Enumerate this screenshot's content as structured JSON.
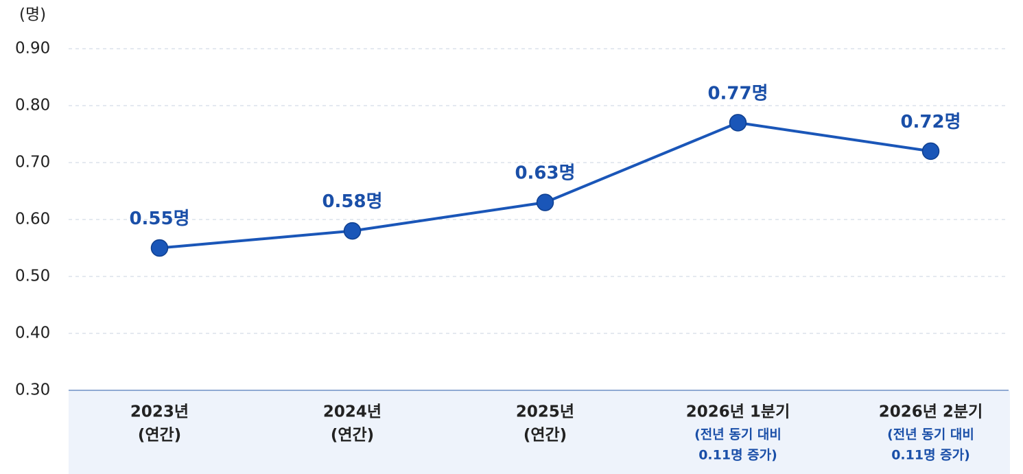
{
  "chart_data": {
    "type": "line",
    "y_axis_label": "(명)",
    "categories": [
      "2023년",
      "2024년",
      "2025년",
      "2026년 1분기",
      "2026년 2분기"
    ],
    "category_notes": [
      "(연간)",
      "(연간)",
      "(연간)",
      null,
      null
    ],
    "annotations": [
      null,
      null,
      null,
      [
        "(전년 동기 대비",
        "0.11명 증가)"
      ],
      [
        "(전년 동기 대비",
        "0.11명 증가)"
      ]
    ],
    "values": [
      0.55,
      0.58,
      0.63,
      0.77,
      0.72
    ],
    "value_labels": [
      "0.55명",
      "0.58명",
      "0.63명",
      "0.77명",
      "0.72명"
    ],
    "color": "#1a56b8",
    "ylim": [
      0.3,
      0.9
    ],
    "yticks": [
      {
        "value": 0.3,
        "label": "0.30"
      },
      {
        "value": 0.4,
        "label": "0.40"
      },
      {
        "value": 0.5,
        "label": "0.50"
      },
      {
        "value": 0.6,
        "label": "0.60"
      },
      {
        "value": 0.7,
        "label": "0.70"
      },
      {
        "value": 0.8,
        "label": "0.80"
      },
      {
        "value": 0.9,
        "label": "0.90"
      }
    ],
    "grid": true
  }
}
